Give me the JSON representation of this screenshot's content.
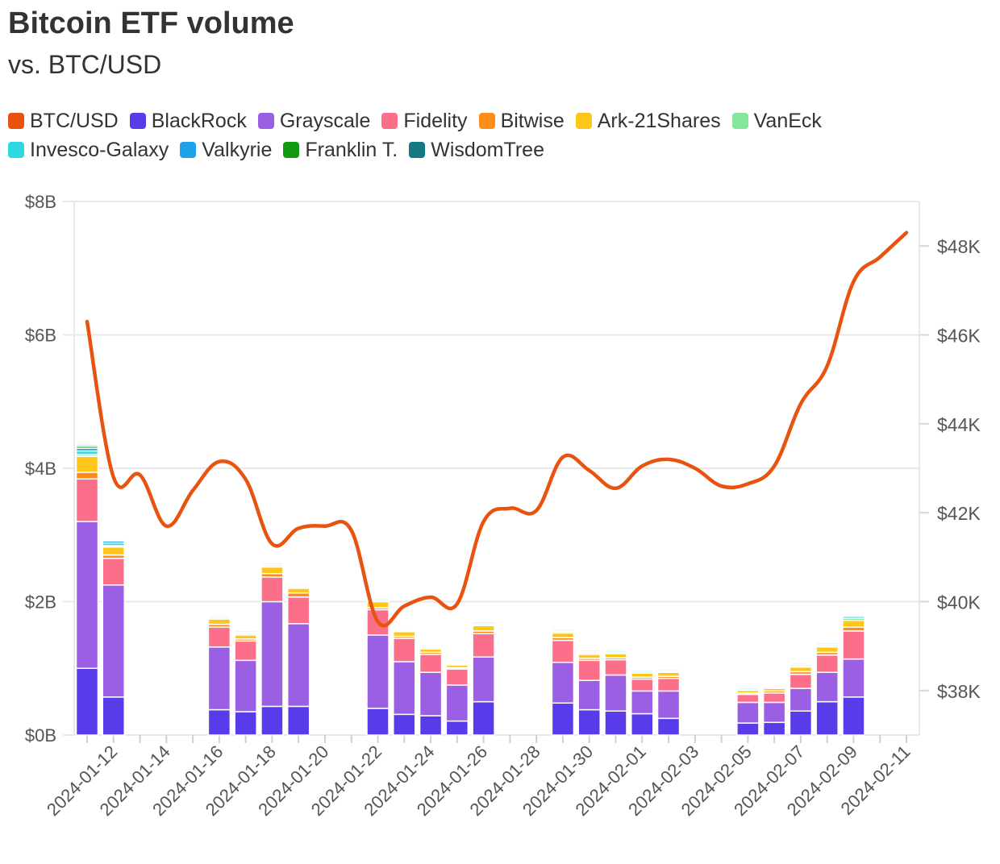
{
  "title": "Bitcoin ETF volume",
  "subtitle": "vs. BTC/USD",
  "colors": {
    "BTC/USD": "#e8540f",
    "BlackRock": "#5a3bea",
    "Grayscale": "#9b5fe4",
    "Fidelity": "#fc6f8a",
    "Bitwise": "#ff8c1a",
    "Ark-21Shares": "#ffc61a",
    "VanEck": "#86e69a",
    "Invesco-Galaxy": "#2ed8e0",
    "Valkyrie": "#1fa2ea",
    "Franklin T.": "#119910",
    "WisdomTree": "#137a86"
  },
  "legend": [
    "BTC/USD",
    "BlackRock",
    "Grayscale",
    "Fidelity",
    "Bitwise",
    "Ark-21Shares",
    "VanEck",
    "Invesco-Galaxy",
    "Valkyrie",
    "Franklin T.",
    "WisdomTree"
  ],
  "chart_data": {
    "type": "bar+line",
    "left_axis": {
      "unit": "USD volume",
      "ylim": [
        0,
        8000000000
      ],
      "ticks": [
        0,
        2000000000,
        4000000000,
        6000000000,
        8000000000
      ],
      "tick_labels": [
        "$0B",
        "$2B",
        "$4B",
        "$6B",
        "$8B"
      ]
    },
    "right_axis": {
      "unit": "BTC/USD",
      "ylim": [
        37000,
        49000
      ],
      "ticks": [
        38000,
        40000,
        42000,
        44000,
        46000,
        48000
      ],
      "tick_labels": [
        "$38K",
        "$40K",
        "$42K",
        "$44K",
        "$46K",
        "$48K"
      ]
    },
    "x_range": [
      "2024-01-11",
      "2024-02-11"
    ],
    "x_tick_labels": [
      "2024-01-12",
      "2024-01-14",
      "2024-01-16",
      "2024-01-18",
      "2024-01-20",
      "2024-01-22",
      "2024-01-24",
      "2024-01-26",
      "2024-01-28",
      "2024-01-30",
      "2024-02-01",
      "2024-02-03",
      "2024-02-05",
      "2024-02-07",
      "2024-02-09",
      "2024-02-11"
    ],
    "bar_series_order": [
      "BlackRock",
      "Grayscale",
      "Fidelity",
      "Bitwise",
      "Ark-21Shares",
      "VanEck",
      "Invesco-Galaxy",
      "Valkyrie",
      "Franklin T.",
      "WisdomTree"
    ],
    "bars": [
      {
        "date": "2024-01-11",
        "values": [
          1.0,
          2.2,
          0.64,
          0.1,
          0.24,
          0.03,
          0.05,
          0.04,
          0.03,
          0.02
        ]
      },
      {
        "date": "2024-01-12",
        "values": [
          0.57,
          1.68,
          0.4,
          0.05,
          0.12,
          0.02,
          0.04,
          0.03,
          0.02,
          0.01
        ]
      },
      {
        "date": "2024-01-16",
        "values": [
          0.38,
          0.94,
          0.3,
          0.04,
          0.08,
          0.02,
          0.02,
          0.02,
          0.01,
          0.01
        ]
      },
      {
        "date": "2024-01-17",
        "values": [
          0.35,
          0.77,
          0.29,
          0.03,
          0.06,
          0.02,
          0.02,
          0.02,
          0.01,
          0.01
        ]
      },
      {
        "date": "2024-01-18",
        "values": [
          0.43,
          1.57,
          0.37,
          0.05,
          0.1,
          0.02,
          0.02,
          0.02,
          0.01,
          0.01
        ]
      },
      {
        "date": "2024-01-19",
        "values": [
          0.43,
          1.24,
          0.4,
          0.06,
          0.07,
          0.02,
          0.02,
          0.01,
          0.01,
          0.01
        ]
      },
      {
        "date": "2024-01-22",
        "values": [
          0.4,
          1.1,
          0.38,
          0.03,
          0.09,
          0.02,
          0.02,
          0.02,
          0.01,
          0.01
        ]
      },
      {
        "date": "2024-01-23",
        "values": [
          0.31,
          0.79,
          0.35,
          0.03,
          0.07,
          0.02,
          0.01,
          0.01,
          0.01,
          0.0
        ]
      },
      {
        "date": "2024-01-24",
        "values": [
          0.29,
          0.65,
          0.27,
          0.03,
          0.05,
          0.01,
          0.01,
          0.01,
          0.0,
          0.0
        ]
      },
      {
        "date": "2024-01-25",
        "values": [
          0.21,
          0.54,
          0.24,
          0.02,
          0.04,
          0.01,
          0.01,
          0.01,
          0.0,
          0.0
        ]
      },
      {
        "date": "2024-01-26",
        "values": [
          0.5,
          0.67,
          0.35,
          0.04,
          0.08,
          0.02,
          0.02,
          0.02,
          0.01,
          0.01
        ]
      },
      {
        "date": "2024-01-29",
        "values": [
          0.48,
          0.61,
          0.33,
          0.04,
          0.07,
          0.02,
          0.02,
          0.02,
          0.01,
          0.01
        ]
      },
      {
        "date": "2024-01-30",
        "values": [
          0.38,
          0.44,
          0.3,
          0.03,
          0.06,
          0.02,
          0.02,
          0.02,
          0.01,
          0.01
        ]
      },
      {
        "date": "2024-01-31",
        "values": [
          0.36,
          0.54,
          0.23,
          0.03,
          0.06,
          0.02,
          0.02,
          0.02,
          0.01,
          0.01
        ]
      },
      {
        "date": "2024-02-01",
        "values": [
          0.32,
          0.34,
          0.18,
          0.03,
          0.06,
          0.02,
          0.02,
          0.01,
          0.01,
          0.0
        ]
      },
      {
        "date": "2024-02-02",
        "values": [
          0.25,
          0.41,
          0.19,
          0.03,
          0.06,
          0.02,
          0.02,
          0.01,
          0.01,
          0.01
        ]
      },
      {
        "date": "2024-02-05",
        "values": [
          0.18,
          0.31,
          0.12,
          0.02,
          0.04,
          0.02,
          0.02,
          0.01,
          0.01,
          0.01
        ]
      },
      {
        "date": "2024-02-06",
        "values": [
          0.19,
          0.3,
          0.14,
          0.03,
          0.04,
          0.02,
          0.01,
          0.01,
          0.0,
          0.0
        ]
      },
      {
        "date": "2024-02-07",
        "values": [
          0.36,
          0.34,
          0.21,
          0.04,
          0.07,
          0.02,
          0.02,
          0.02,
          0.01,
          0.01
        ]
      },
      {
        "date": "2024-02-08",
        "values": [
          0.5,
          0.44,
          0.26,
          0.04,
          0.08,
          0.02,
          0.02,
          0.02,
          0.01,
          0.01
        ]
      },
      {
        "date": "2024-02-09",
        "values": [
          0.57,
          0.57,
          0.42,
          0.06,
          0.1,
          0.03,
          0.03,
          0.02,
          0.01,
          0.01
        ]
      }
    ],
    "btc_usd_line": [
      {
        "date": "2024-01-11",
        "value": 46300
      },
      {
        "date": "2024-01-12",
        "value": 42800
      },
      {
        "date": "2024-01-13",
        "value": 42850
      },
      {
        "date": "2024-01-14",
        "value": 41700
      },
      {
        "date": "2024-01-15",
        "value": 42500
      },
      {
        "date": "2024-01-16",
        "value": 43150
      },
      {
        "date": "2024-01-17",
        "value": 42750
      },
      {
        "date": "2024-01-18",
        "value": 41300
      },
      {
        "date": "2024-01-19",
        "value": 41650
      },
      {
        "date": "2024-01-20",
        "value": 41700
      },
      {
        "date": "2024-01-21",
        "value": 41600
      },
      {
        "date": "2024-01-22",
        "value": 39550
      },
      {
        "date": "2024-01-23",
        "value": 39900
      },
      {
        "date": "2024-01-24",
        "value": 40100
      },
      {
        "date": "2024-01-25",
        "value": 39950
      },
      {
        "date": "2024-01-26",
        "value": 41800
      },
      {
        "date": "2024-01-27",
        "value": 42100
      },
      {
        "date": "2024-01-28",
        "value": 42050
      },
      {
        "date": "2024-01-29",
        "value": 43250
      },
      {
        "date": "2024-01-30",
        "value": 42950
      },
      {
        "date": "2024-01-31",
        "value": 42550
      },
      {
        "date": "2024-02-01",
        "value": 43050
      },
      {
        "date": "2024-02-02",
        "value": 43200
      },
      {
        "date": "2024-02-03",
        "value": 43000
      },
      {
        "date": "2024-02-04",
        "value": 42600
      },
      {
        "date": "2024-02-05",
        "value": 42650
      },
      {
        "date": "2024-02-06",
        "value": 43050
      },
      {
        "date": "2024-02-07",
        "value": 44450
      },
      {
        "date": "2024-02-08",
        "value": 45300
      },
      {
        "date": "2024-02-09",
        "value": 47200
      },
      {
        "date": "2024-02-10",
        "value": 47750
      },
      {
        "date": "2024-02-11",
        "value": 48300
      }
    ],
    "bar_value_unit": "billions USD",
    "grid": true,
    "legend_position": "top"
  }
}
